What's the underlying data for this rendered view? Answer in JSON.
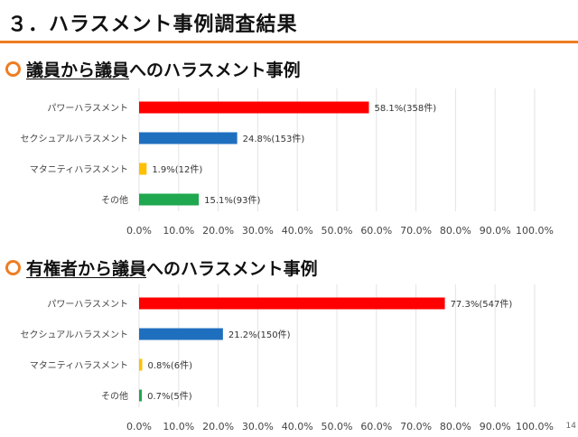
{
  "header": {
    "title": "３．ハラスメント事例調査結果"
  },
  "sections": [
    {
      "heading_underlined": "議員から議員",
      "heading_rest": "へのハラスメント事例"
    },
    {
      "heading_underlined": "有権者から議員",
      "heading_rest": "へのハラスメント事例"
    }
  ],
  "colors": {
    "accent": "#ee7d22",
    "power": "#ff0000",
    "sexual": "#1f6fbf",
    "maternity": "#ffc000",
    "other": "#1fa84f"
  },
  "chart_data": [
    {
      "type": "bar",
      "orientation": "horizontal",
      "title": "",
      "categories": [
        "パワーハラスメント",
        "セクシュアルハラスメント",
        "マタニティハラスメント",
        "その他"
      ],
      "values": [
        58.1,
        24.8,
        1.9,
        15.1
      ],
      "data_labels": [
        "58.1%(358件)",
        "24.8%(153件)",
        "1.9%(12件)",
        "15.1%(93件)"
      ],
      "bar_colors": [
        "#ff0000",
        "#1f6fbf",
        "#ffc000",
        "#1fa84f"
      ],
      "xlim": [
        0,
        100
      ],
      "xticks": [
        "0.0%",
        "10.0%",
        "20.0%",
        "30.0%",
        "40.0%",
        "50.0%",
        "60.0%",
        "70.0%",
        "80.0%",
        "90.0%",
        "100.0%"
      ],
      "grid": true
    },
    {
      "type": "bar",
      "orientation": "horizontal",
      "title": "",
      "categories": [
        "パワーハラスメント",
        "セクシュアルハラスメント",
        "マタニティハラスメント",
        "その他"
      ],
      "values": [
        77.3,
        21.2,
        0.8,
        0.7
      ],
      "data_labels": [
        "77.3%(547件)",
        "21.2%(150件)",
        "0.8%(6件)",
        "0.7%(5件)"
      ],
      "bar_colors": [
        "#ff0000",
        "#1f6fbf",
        "#ffc000",
        "#1fa84f"
      ],
      "xlim": [
        0,
        100
      ],
      "xticks": [
        "0.0%",
        "10.0%",
        "20.0%",
        "30.0%",
        "40.0%",
        "50.0%",
        "60.0%",
        "70.0%",
        "80.0%",
        "90.0%",
        "100.0%"
      ],
      "grid": true
    }
  ],
  "footer": {
    "page_number": "14"
  }
}
